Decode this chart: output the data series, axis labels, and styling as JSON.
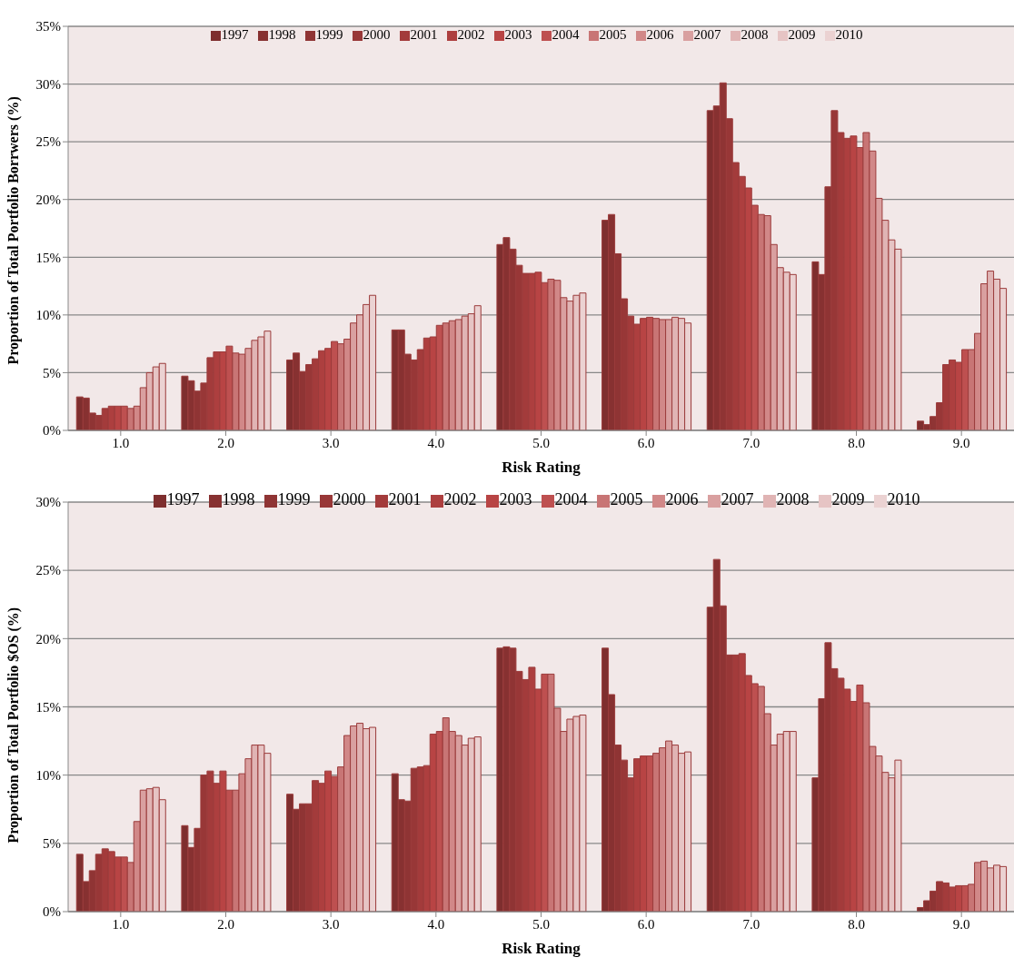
{
  "chart_data": [
    {
      "type": "bar",
      "xlabel": "Risk Rating",
      "ylabel": "Proportion of Total Portfolio Borrwers (%)",
      "categories": [
        "1.0",
        "2.0",
        "3.0",
        "4.0",
        "5.0",
        "6.0",
        "7.0",
        "8.0",
        "9.0"
      ],
      "ylim": [
        0,
        35
      ],
      "yticks": [
        {
          "value": 0,
          "label": "0%"
        },
        {
          "value": 5,
          "label": "5%"
        },
        {
          "value": 10,
          "label": "10%"
        },
        {
          "value": 15,
          "label": "15%"
        },
        {
          "value": 20,
          "label": "20%"
        },
        {
          "value": 25,
          "label": "25%"
        },
        {
          "value": 30,
          "label": "30%"
        },
        {
          "value": 35,
          "label": "35%"
        }
      ],
      "grid": "y",
      "legend": "top",
      "series": [
        {
          "name": "1997",
          "color": "#7e2e2e",
          "values": [
            2.9,
            4.7,
            6.1,
            8.7,
            16.1,
            18.2,
            27.7,
            14.6,
            0.8
          ]
        },
        {
          "name": "1998",
          "color": "#873131",
          "values": [
            2.8,
            4.3,
            6.7,
            8.7,
            16.7,
            18.7,
            28.1,
            13.5,
            0.5
          ]
        },
        {
          "name": "1999",
          "color": "#8f3434",
          "values": [
            1.5,
            3.4,
            5.1,
            6.6,
            15.7,
            15.3,
            30.1,
            21.1,
            1.2
          ]
        },
        {
          "name": "2000",
          "color": "#983737",
          "values": [
            1.3,
            4.1,
            5.7,
            6.1,
            14.3,
            11.4,
            27.0,
            27.7,
            2.4
          ]
        },
        {
          "name": "2001",
          "color": "#a33b3b",
          "values": [
            1.9,
            6.3,
            6.2,
            7.0,
            13.6,
            9.9,
            23.2,
            25.8,
            5.7
          ]
        },
        {
          "name": "2002",
          "color": "#ad3f3f",
          "values": [
            2.1,
            6.8,
            6.9,
            8.0,
            13.6,
            9.2,
            22.0,
            25.3,
            6.1
          ]
        },
        {
          "name": "2003",
          "color": "#b84444",
          "values": [
            2.1,
            6.8,
            7.1,
            8.1,
            13.7,
            9.7,
            21.0,
            25.5,
            5.9
          ]
        },
        {
          "name": "2004",
          "color": "#be5050",
          "values": [
            2.1,
            7.3,
            7.7,
            9.1,
            12.8,
            9.8,
            19.5,
            24.5,
            7.0
          ]
        },
        {
          "name": "2005",
          "color": "#c87575",
          "values": [
            1.9,
            6.7,
            7.5,
            9.3,
            13.1,
            9.7,
            18.7,
            25.8,
            7.0
          ]
        },
        {
          "name": "2006",
          "color": "#d18888",
          "values": [
            2.1,
            6.6,
            7.9,
            9.5,
            13.0,
            9.6,
            18.6,
            24.2,
            8.4
          ]
        },
        {
          "name": "2007",
          "color": "#d9a0a0",
          "values": [
            3.7,
            7.1,
            9.3,
            9.6,
            11.5,
            9.6,
            16.1,
            20.1,
            12.7
          ]
        },
        {
          "name": "2008",
          "color": "#e0b4b4",
          "values": [
            5.0,
            7.8,
            10.0,
            9.9,
            11.2,
            9.8,
            14.1,
            18.2,
            13.8
          ]
        },
        {
          "name": "2009",
          "color": "#e6c4c4",
          "values": [
            5.5,
            8.1,
            10.9,
            10.1,
            11.7,
            9.7,
            13.7,
            16.5,
            13.1
          ]
        },
        {
          "name": "2010",
          "color": "#ebd2d2",
          "values": [
            5.8,
            8.6,
            11.7,
            10.8,
            11.9,
            9.3,
            13.5,
            15.7,
            12.3
          ]
        }
      ]
    },
    {
      "type": "bar",
      "xlabel": "Risk Rating",
      "ylabel": "Proportion of Total Portfolio $OS (%)",
      "categories": [
        "1.0",
        "2.0",
        "3.0",
        "4.0",
        "5.0",
        "6.0",
        "7.0",
        "8.0",
        "9.0"
      ],
      "ylim": [
        0,
        30
      ],
      "yticks": [
        {
          "value": 0,
          "label": "0%"
        },
        {
          "value": 5,
          "label": "5%"
        },
        {
          "value": 10,
          "label": "10%"
        },
        {
          "value": 15,
          "label": "15%"
        },
        {
          "value": 20,
          "label": "20%"
        },
        {
          "value": 25,
          "label": "25%"
        },
        {
          "value": 30,
          "label": "30%"
        }
      ],
      "grid": "y",
      "legend": "top",
      "series": [
        {
          "name": "1997",
          "color": "#7e2e2e",
          "values": [
            4.2,
            6.3,
            8.6,
            10.1,
            19.3,
            19.3,
            22.3,
            9.8,
            0.3
          ]
        },
        {
          "name": "1998",
          "color": "#873131",
          "values": [
            2.2,
            4.7,
            7.5,
            8.2,
            19.4,
            15.9,
            25.8,
            15.6,
            0.8
          ]
        },
        {
          "name": "1999",
          "color": "#8f3434",
          "values": [
            3.0,
            6.1,
            7.9,
            8.1,
            19.3,
            12.2,
            22.4,
            19.7,
            1.5
          ]
        },
        {
          "name": "2000",
          "color": "#983737",
          "values": [
            4.2,
            10.0,
            7.9,
            10.5,
            17.6,
            11.1,
            18.8,
            17.8,
            2.2
          ]
        },
        {
          "name": "2001",
          "color": "#a33b3b",
          "values": [
            4.6,
            10.3,
            9.6,
            10.6,
            17.0,
            9.8,
            18.8,
            17.1,
            2.1
          ]
        },
        {
          "name": "2002",
          "color": "#ad3f3f",
          "values": [
            4.4,
            9.4,
            9.4,
            10.7,
            17.9,
            11.2,
            18.9,
            16.3,
            1.8
          ]
        },
        {
          "name": "2003",
          "color": "#b84444",
          "values": [
            4.0,
            10.3,
            10.3,
            13.0,
            16.3,
            11.4,
            17.3,
            15.4,
            1.9
          ]
        },
        {
          "name": "2004",
          "color": "#be5050",
          "values": [
            4.0,
            8.9,
            9.9,
            13.2,
            17.4,
            11.4,
            16.7,
            16.6,
            1.9
          ]
        },
        {
          "name": "2005",
          "color": "#c87575",
          "values": [
            3.6,
            8.9,
            10.6,
            14.2,
            17.4,
            11.6,
            16.5,
            15.3,
            2.0
          ]
        },
        {
          "name": "2006",
          "color": "#d18888",
          "values": [
            6.6,
            10.1,
            12.9,
            13.2,
            14.9,
            12.0,
            14.5,
            12.1,
            3.6
          ]
        },
        {
          "name": "2007",
          "color": "#d9a0a0",
          "values": [
            8.9,
            11.2,
            13.6,
            12.9,
            13.2,
            12.5,
            12.2,
            11.4,
            3.7
          ]
        },
        {
          "name": "2008",
          "color": "#e0b4b4",
          "values": [
            9.0,
            12.2,
            13.8,
            12.2,
            14.1,
            12.2,
            13.0,
            10.2,
            3.2
          ]
        },
        {
          "name": "2009",
          "color": "#e6c4c4",
          "values": [
            9.1,
            12.2,
            13.4,
            12.7,
            14.3,
            11.6,
            13.2,
            9.8,
            3.4
          ]
        },
        {
          "name": "2010",
          "color": "#ebd2d2",
          "values": [
            8.2,
            11.6,
            13.5,
            12.8,
            14.4,
            11.7,
            13.2,
            11.1,
            3.3
          ]
        }
      ]
    }
  ]
}
